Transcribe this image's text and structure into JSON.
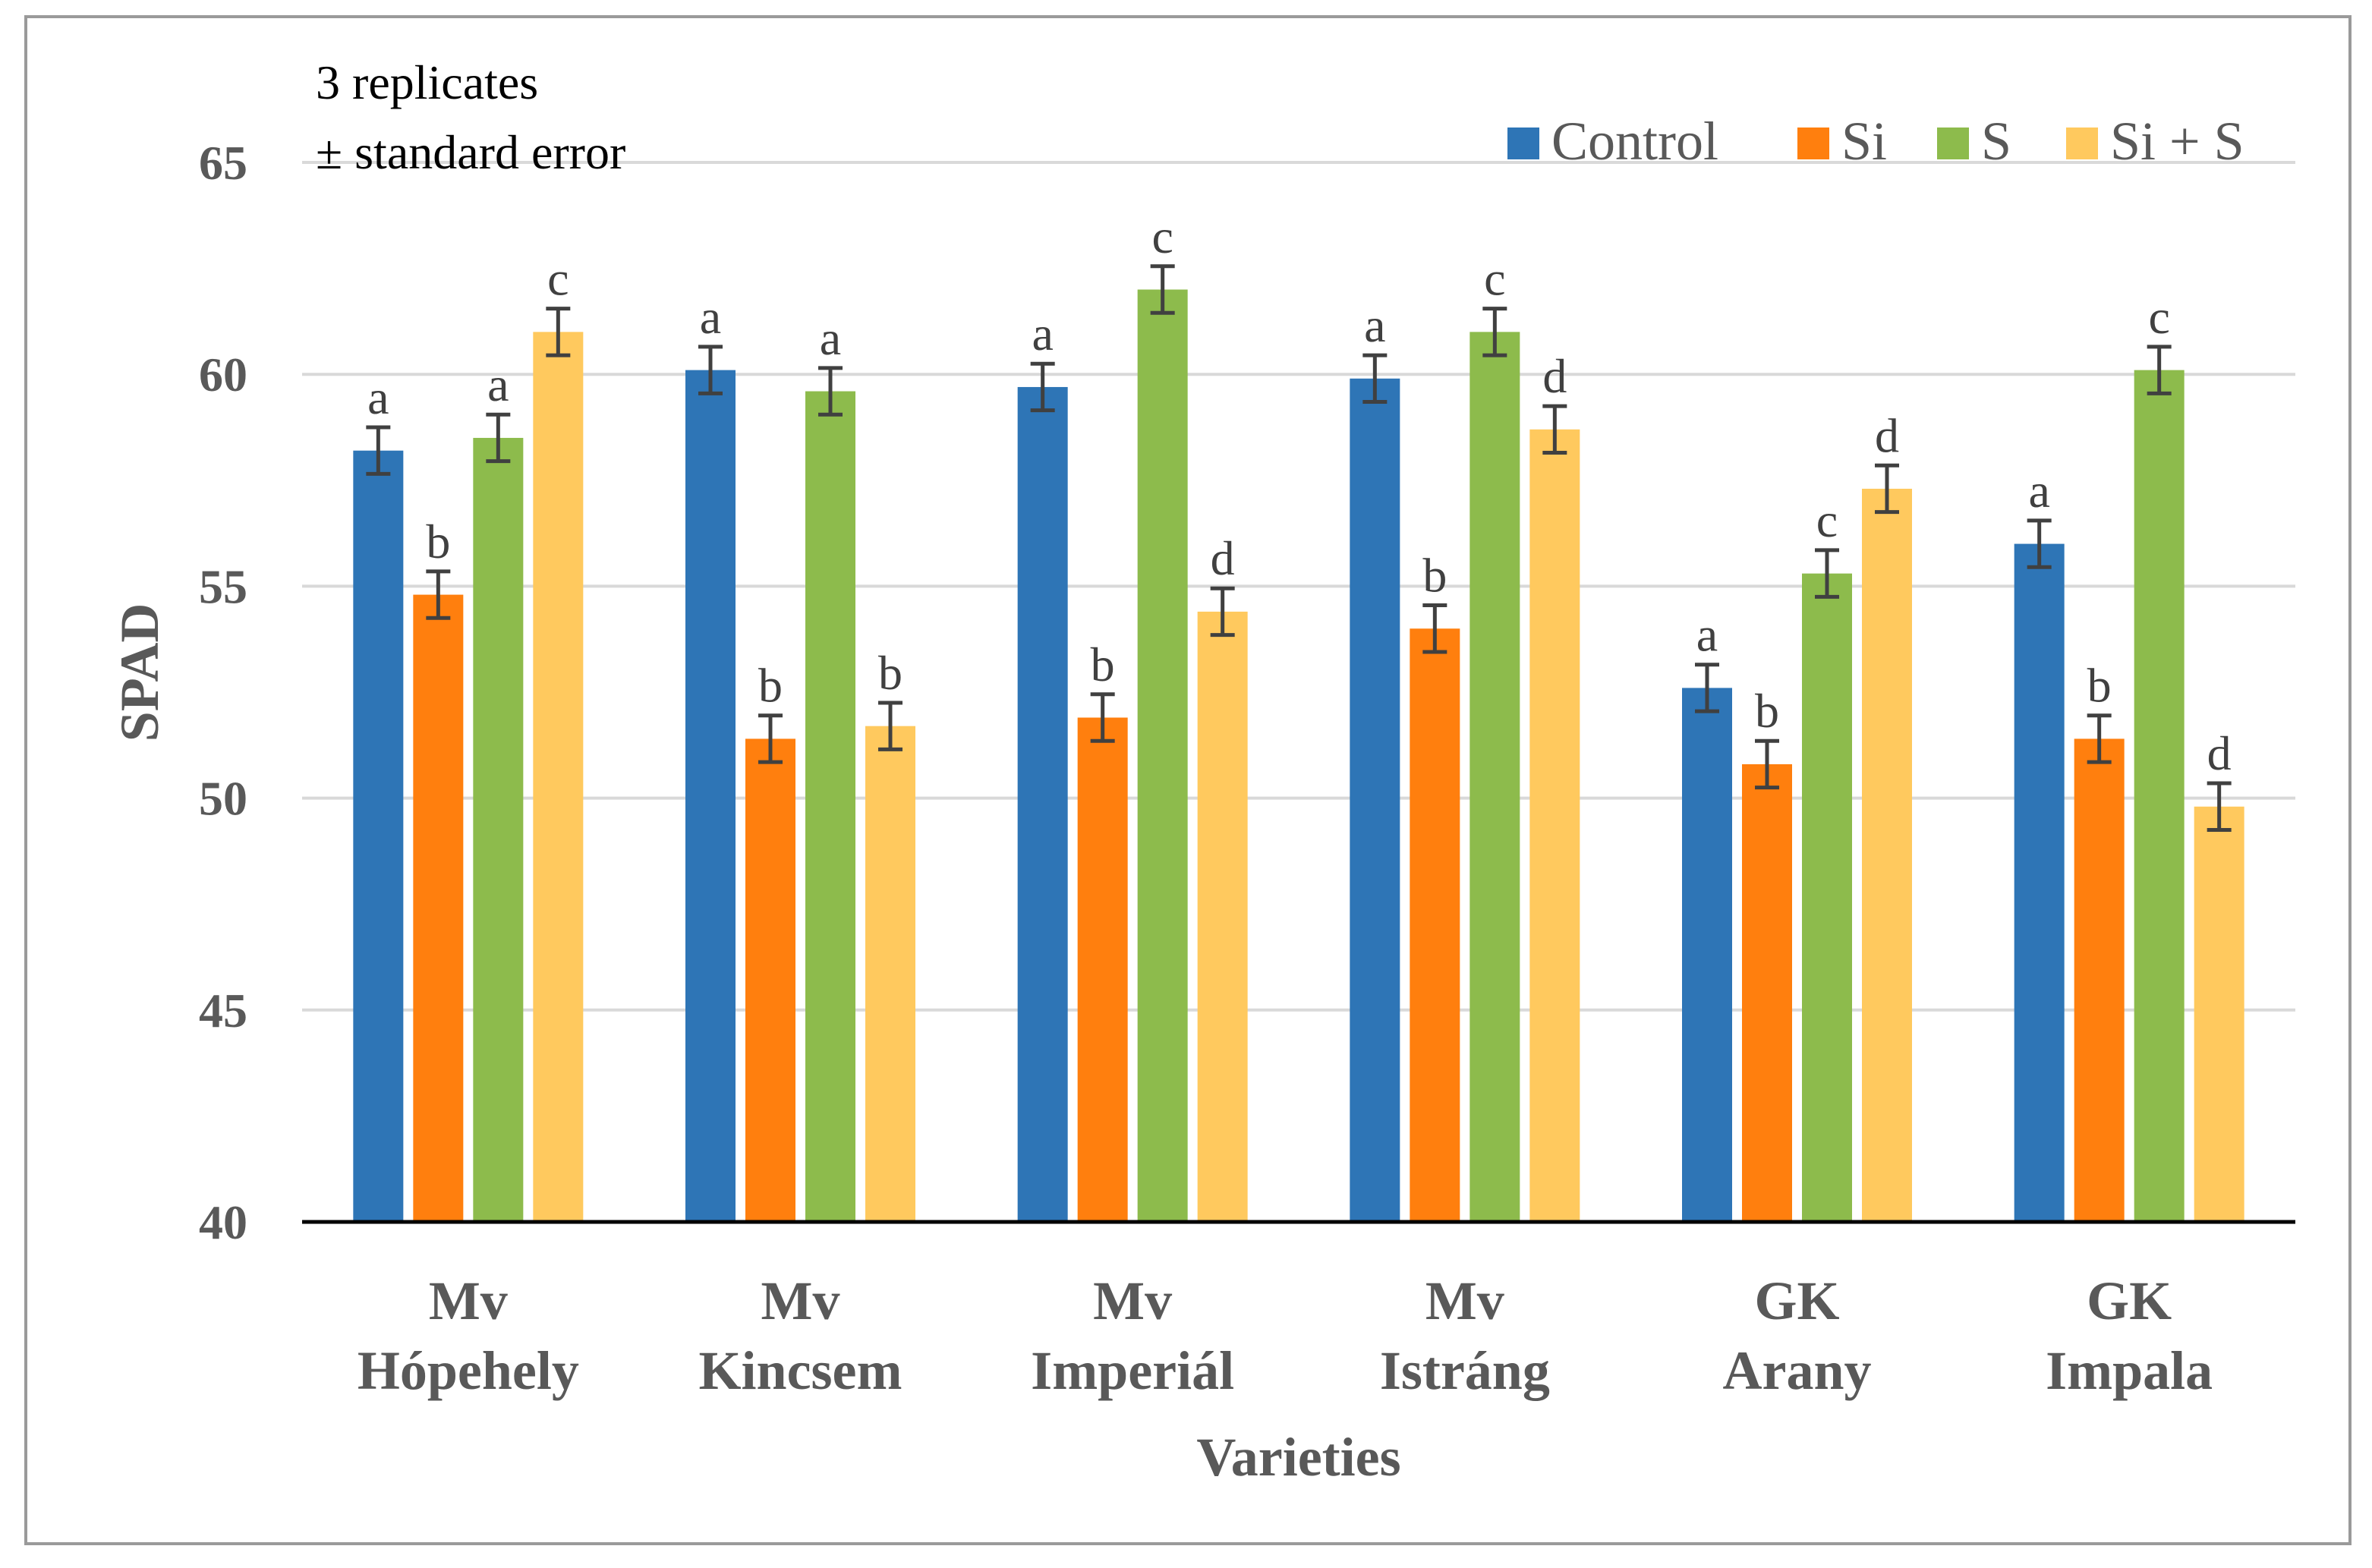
{
  "chart_data": {
    "type": "bar",
    "title": "",
    "xlabel": "Varieties",
    "ylabel": "SPAD",
    "ylim": [
      40,
      65
    ],
    "yticks": [
      40,
      45,
      50,
      55,
      60,
      65
    ],
    "grid": true,
    "legend_position": "top-right",
    "annotation": [
      "3 replicates",
      "± standard error"
    ],
    "categories": [
      [
        "Mv",
        "Hópehely"
      ],
      [
        "Mv",
        "Kincsem"
      ],
      [
        "Mv",
        "Imperiál"
      ],
      [
        "Mv",
        "Istráng"
      ],
      [
        "GK",
        "Arany"
      ],
      [
        "GK",
        "Impala"
      ]
    ],
    "series": [
      {
        "name": "Control",
        "color": "#2E75B6",
        "values": [
          58.2,
          60.1,
          59.7,
          59.9,
          52.6,
          56.0
        ],
        "errors": [
          0.55,
          0.55,
          0.55,
          0.55,
          0.55,
          0.55
        ],
        "letters": [
          "a",
          "a",
          "a",
          "a",
          "a",
          "a"
        ]
      },
      {
        "name": "Si",
        "color": "#FF7F0E",
        "values": [
          54.8,
          51.4,
          51.9,
          54.0,
          50.8,
          51.4
        ],
        "errors": [
          0.55,
          0.55,
          0.55,
          0.55,
          0.55,
          0.55
        ],
        "letters": [
          "b",
          "b",
          "b",
          "b",
          "b",
          "b"
        ]
      },
      {
        "name": "S",
        "color": "#8DBB4C",
        "values": [
          58.5,
          59.6,
          62.0,
          61.0,
          55.3,
          60.1
        ],
        "errors": [
          0.55,
          0.55,
          0.55,
          0.55,
          0.55,
          0.55
        ],
        "letters": [
          "a",
          "a",
          "c",
          "c",
          "c",
          "c"
        ]
      },
      {
        "name": "Si + S",
        "color": "#FFC95E",
        "values": [
          61.0,
          51.7,
          54.4,
          58.7,
          57.3,
          49.8
        ],
        "errors": [
          0.55,
          0.55,
          0.55,
          0.55,
          0.55,
          0.55
        ],
        "letters": [
          "c",
          "b",
          "d",
          "d",
          "d",
          "d"
        ]
      }
    ]
  }
}
